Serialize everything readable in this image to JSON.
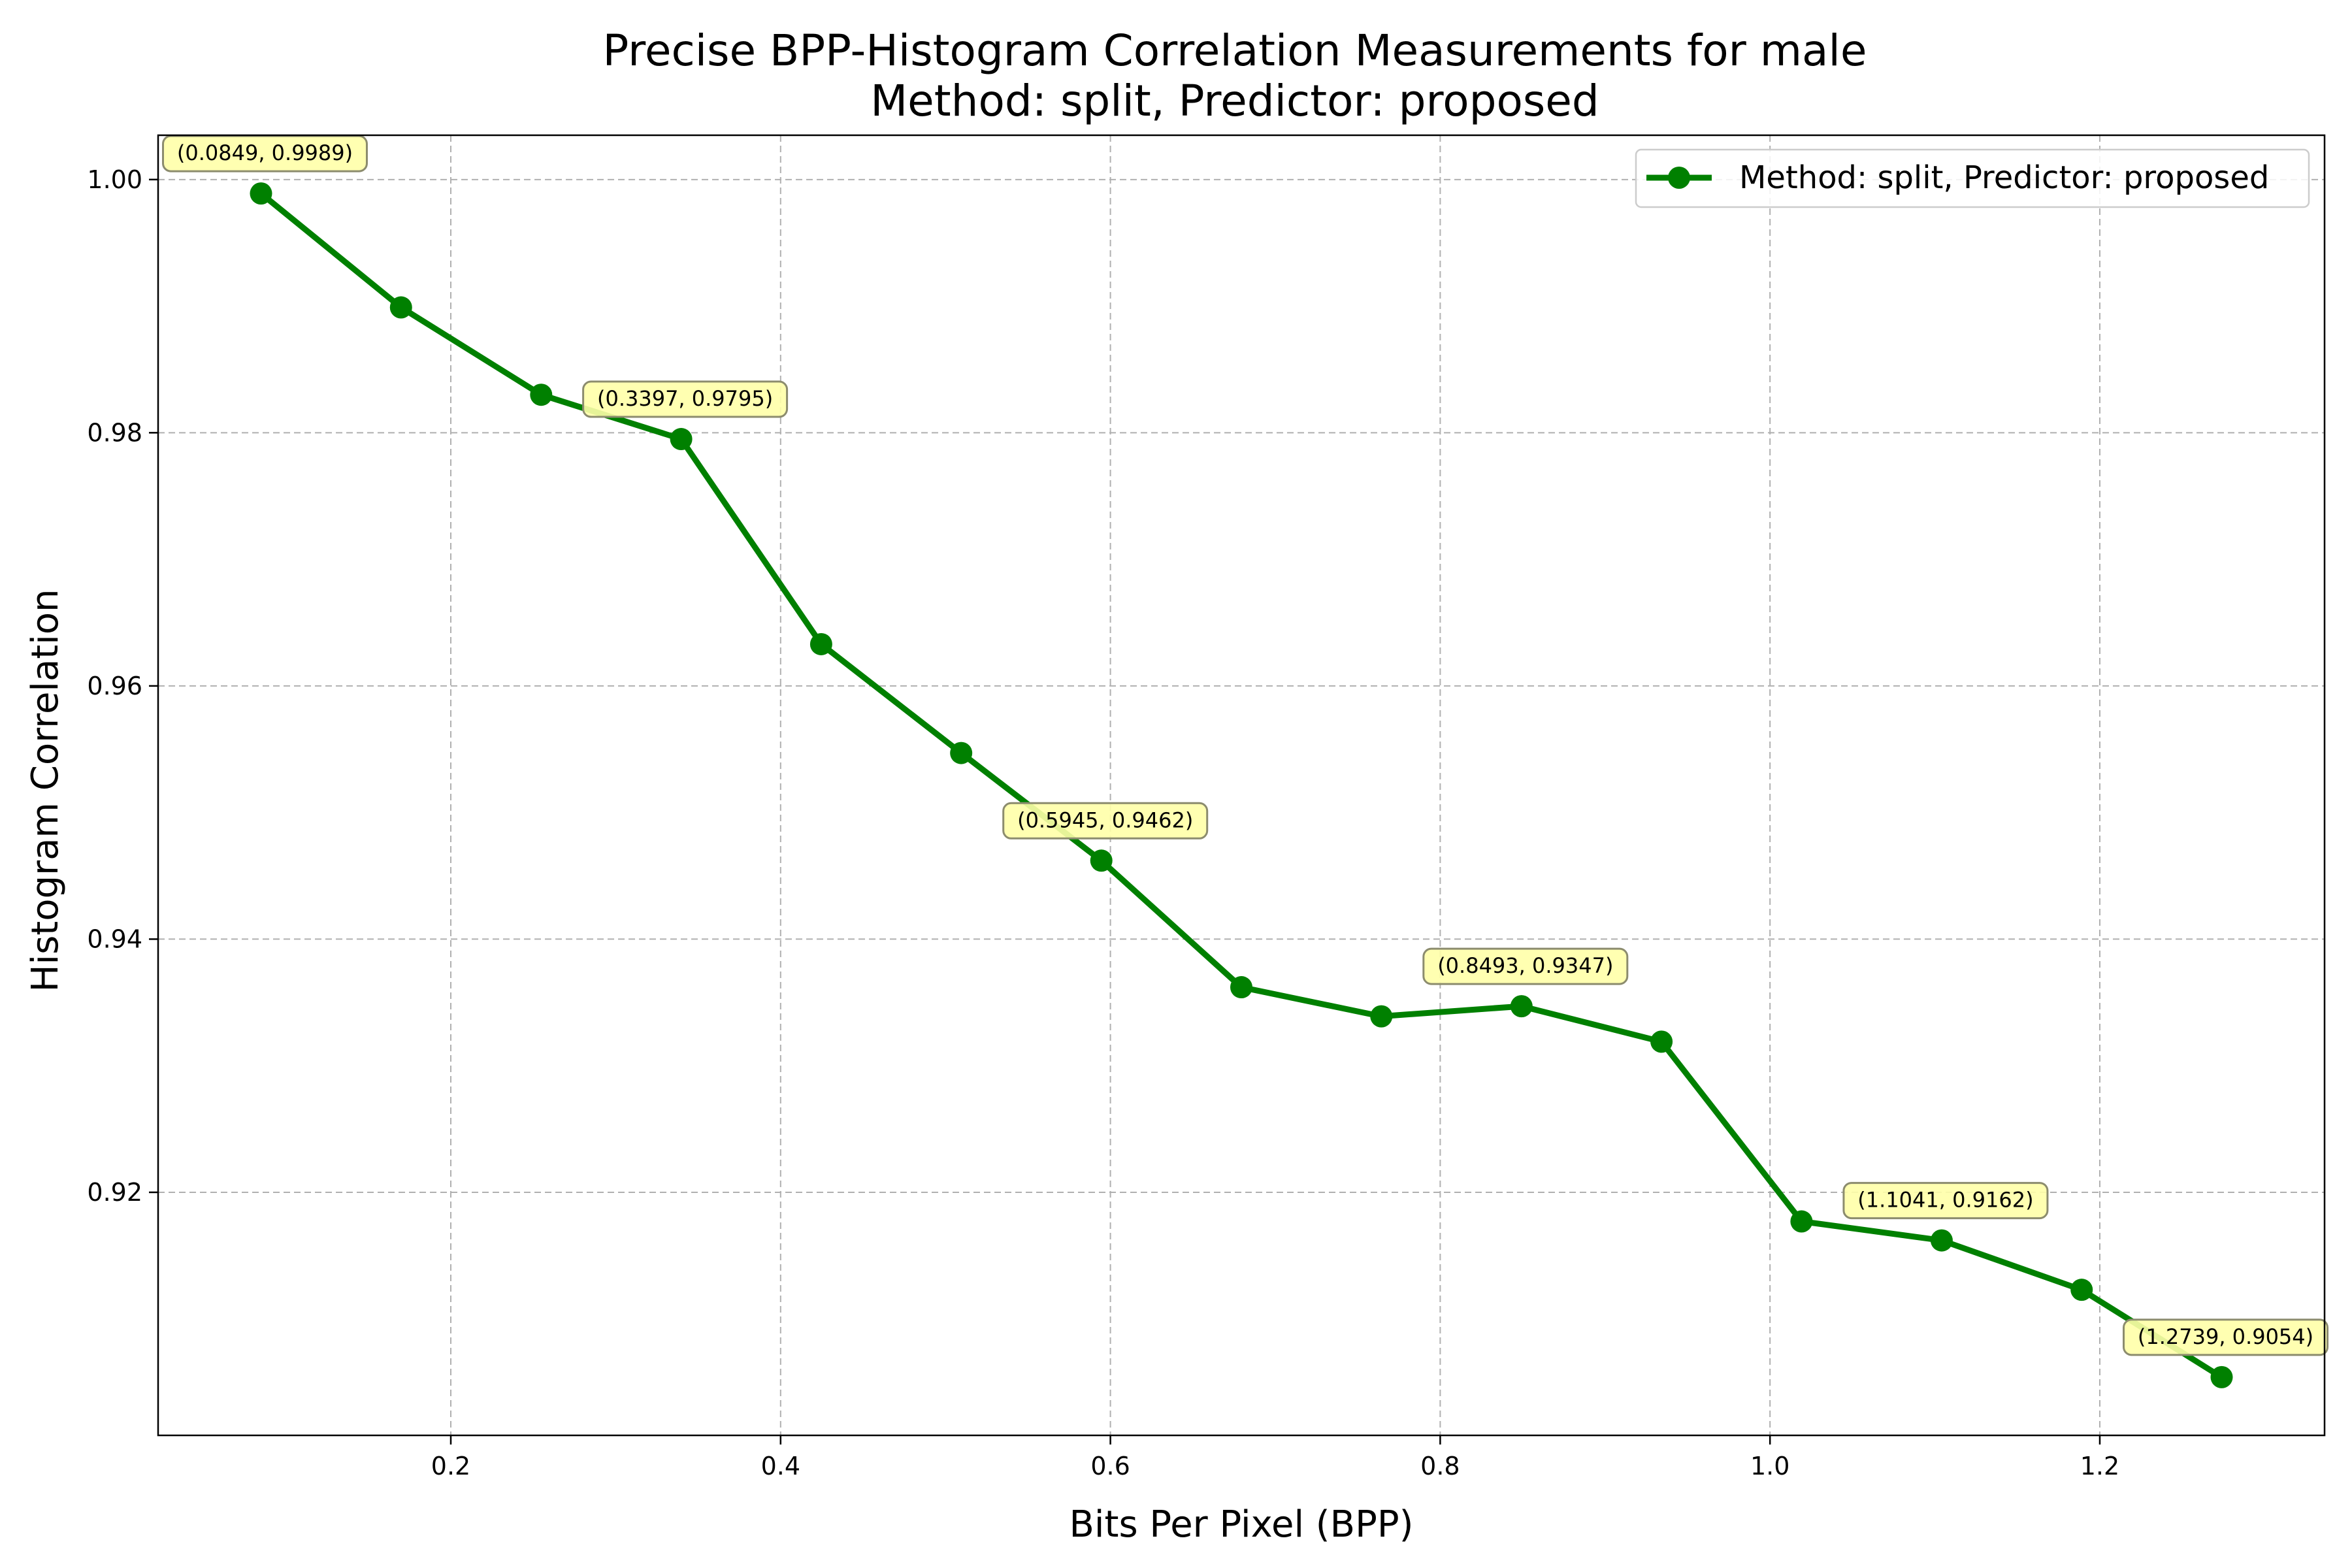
{
  "chart_data": {
    "type": "line",
    "title": "Precise BPP-Histogram Correlation Measurements for male",
    "subtitle": "Method: split, Predictor: proposed",
    "xlabel": "Bits Per Pixel (BPP)",
    "ylabel": "Histogram Correlation",
    "xlim": [
      0.0225,
      1.3363
    ],
    "ylim": [
      0.9008,
      1.0035
    ],
    "x_ticks": [
      "0.2",
      "0.4",
      "0.6",
      "0.8",
      "1.0",
      "1.2"
    ],
    "x_tick_values": [
      0.2,
      0.4,
      0.6,
      0.8,
      1.0,
      1.2
    ],
    "y_ticks": [
      "0.92",
      "0.94",
      "0.96",
      "0.98",
      "1.00"
    ],
    "y_tick_values": [
      0.92,
      0.94,
      0.96,
      0.98,
      1.0
    ],
    "grid": true,
    "legend_position": "top-right",
    "series": [
      {
        "name": "Method: split, Predictor: proposed",
        "color": "#008000",
        "marker": "circle",
        "x": [
          0.0849,
          0.1698,
          0.2548,
          0.3397,
          0.4246,
          0.5095,
          0.5945,
          0.6794,
          0.7643,
          0.8493,
          0.9342,
          1.0191,
          1.1041,
          1.189,
          1.2739
        ],
        "y": [
          0.9989,
          0.9899,
          0.983,
          0.9795,
          0.9633,
          0.9547,
          0.9462,
          0.9362,
          0.9339,
          0.9347,
          0.9319,
          0.9177,
          0.9162,
          0.9123,
          0.9054
        ]
      }
    ],
    "annotations": [
      {
        "text": "(0.0849, 0.9989)",
        "x": 0.0849,
        "y": 0.9989
      },
      {
        "text": "(0.3397, 0.9795)",
        "x": 0.3397,
        "y": 0.9795
      },
      {
        "text": "(0.5945, 0.9462)",
        "x": 0.5945,
        "y": 0.9462
      },
      {
        "text": "(0.8493, 0.9347)",
        "x": 0.8493,
        "y": 0.9347
      },
      {
        "text": "(1.1041, 0.9162)",
        "x": 1.1041,
        "y": 0.9162
      },
      {
        "text": "(1.2739, 0.9054)",
        "x": 1.2739,
        "y": 0.9054
      }
    ],
    "colors": {
      "line": "#008000",
      "annotation_fill": "#ffffa8",
      "annotation_stroke": "#8c8c6e",
      "grid": "#b0b0b0"
    }
  }
}
